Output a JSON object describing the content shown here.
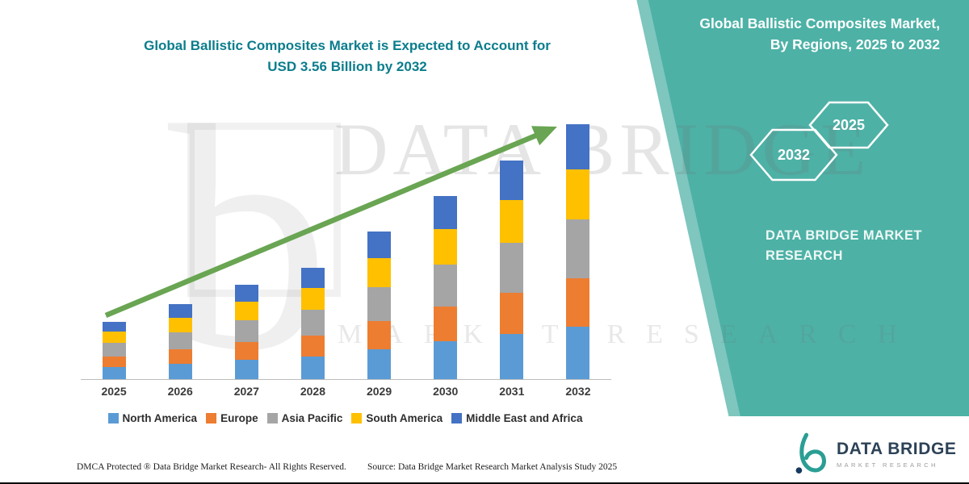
{
  "headline": {
    "line1": "Global Ballistic Composites Market is Expected to Account for",
    "line2": "USD 3.56 Billion by 2032"
  },
  "side_panel": {
    "bg_color": "#4db1a6",
    "title_line1": "Global Ballistic Composites Market,",
    "title_line2": "By Regions, 2025 to 2032",
    "hexagons": [
      {
        "label": "2032"
      },
      {
        "label": "2025"
      }
    ],
    "brand_line1": "DATA BRIDGE MARKET",
    "brand_line2": "RESEARCH"
  },
  "watermark": {
    "letter": "b",
    "line1": "DATA BRIDGE",
    "line2": "MARKET RESEARCH"
  },
  "chart_data": {
    "type": "bar",
    "stacked": true,
    "title": "Global Ballistic Composites Market, By Regions, 2025 to 2032",
    "unit": "USD Billion",
    "categories": [
      "2025",
      "2026",
      "2027",
      "2028",
      "2029",
      "2030",
      "2031",
      "2032"
    ],
    "series": [
      {
        "name": "North America",
        "color": "#5B9BD5",
        "values": [
          0.17,
          0.21,
          0.27,
          0.31,
          0.42,
          0.53,
          0.63,
          0.73
        ]
      },
      {
        "name": "Europe",
        "color": "#ED7D31",
        "values": [
          0.15,
          0.2,
          0.25,
          0.29,
          0.39,
          0.49,
          0.58,
          0.68
        ]
      },
      {
        "name": "Asia Pacific",
        "color": "#A5A5A5",
        "values": [
          0.19,
          0.24,
          0.3,
          0.36,
          0.47,
          0.59,
          0.7,
          0.82
        ]
      },
      {
        "name": "South America",
        "color": "#FFC000",
        "values": [
          0.16,
          0.2,
          0.26,
          0.3,
          0.4,
          0.5,
          0.6,
          0.7
        ]
      },
      {
        "name": "Middle East and Africa",
        "color": "#4472C4",
        "values": [
          0.14,
          0.19,
          0.24,
          0.28,
          0.37,
          0.46,
          0.55,
          0.63
        ]
      }
    ],
    "totals_2032": 3.56,
    "ylim": [
      0,
      3.65
    ],
    "grid": false,
    "y_axis_visible": false,
    "legend_position": "bottom",
    "trend_arrow_color": "#69a552"
  },
  "footer": {
    "dmca": "DMCA Protected ® Data Bridge Market Research-  All Rights Reserved.",
    "source": "Source: Data Bridge Market Research  Market Analysis Study 2025"
  },
  "logo": {
    "name": "DATA BRIDGE",
    "subtext": "MARKET RESEARCH"
  }
}
